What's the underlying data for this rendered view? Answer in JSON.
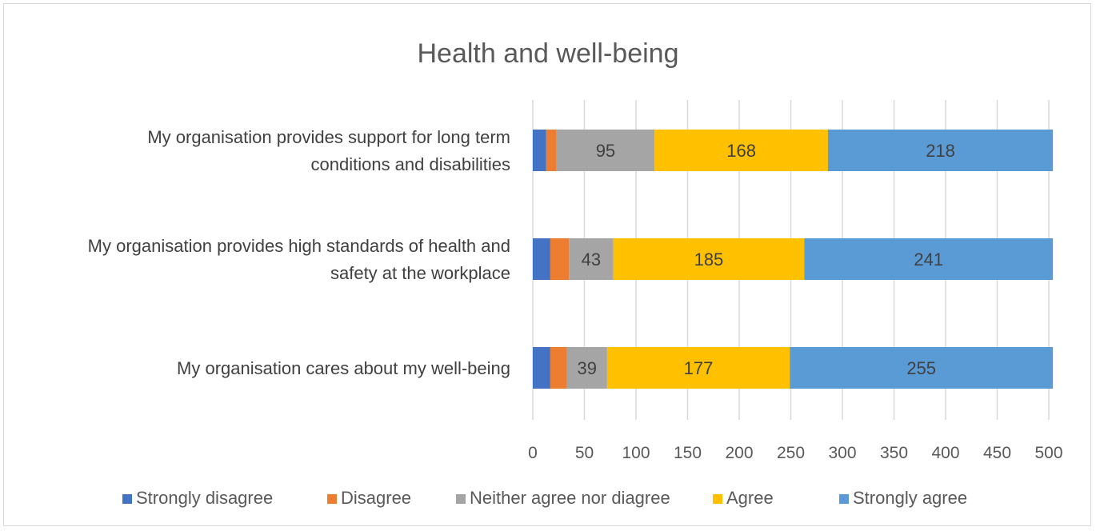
{
  "chart_data": {
    "type": "bar",
    "orientation": "horizontal",
    "stacked": true,
    "title": "Health and well-being",
    "xlim": [
      0,
      500
    ],
    "x_ticks": [
      0,
      50,
      100,
      150,
      200,
      250,
      300,
      350,
      400,
      450,
      500
    ],
    "grid": "vertical",
    "legend_position": "bottom",
    "categories": [
      [
        "My organisation provides support for long term",
        "conditions and disabilities"
      ],
      [
        "My organisation provides high standards of health and",
        "safety at the workplace"
      ],
      [
        "My organisation cares about my well-being"
      ]
    ],
    "series": [
      {
        "name": "Strongly disagree",
        "color": "#4472c4",
        "values": [
          13,
          17,
          17
        ],
        "labels": [
          "",
          "",
          ""
        ]
      },
      {
        "name": "Disagree",
        "color": "#ed7d31",
        "values": [
          10,
          18,
          16
        ],
        "labels": [
          "",
          "",
          ""
        ]
      },
      {
        "name": "Neither agree nor diagree",
        "color": "#a5a5a5",
        "values": [
          95,
          43,
          39
        ],
        "labels": [
          "95",
          "43",
          "39"
        ]
      },
      {
        "name": "Agree",
        "color": "#ffc000",
        "values": [
          168,
          185,
          177
        ],
        "labels": [
          "168",
          "185",
          "177"
        ]
      },
      {
        "name": "Strongly agree",
        "color": "#5b9bd5",
        "values": [
          218,
          241,
          255
        ],
        "labels": [
          "218",
          "241",
          "255"
        ]
      }
    ]
  }
}
